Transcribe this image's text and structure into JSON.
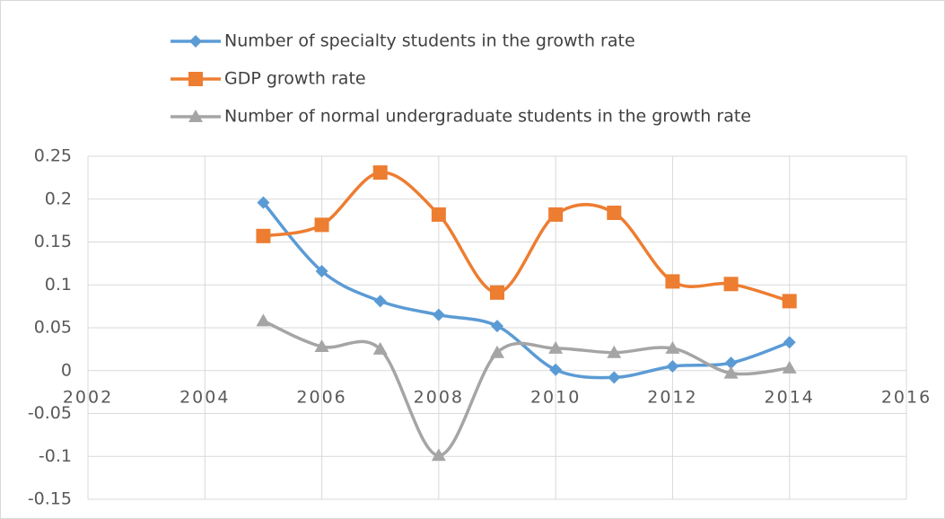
{
  "chart_data": {
    "type": "line",
    "x": [
      2005,
      2006,
      2007,
      2008,
      2009,
      2010,
      2011,
      2012,
      2013,
      2014
    ],
    "series": [
      {
        "name": "Number of specialty students in the growth rate",
        "color": "#5b9bd5",
        "marker": "diamond",
        "values": [
          0.196,
          0.116,
          0.081,
          0.065,
          0.052,
          0.001,
          -0.008,
          0.005,
          0.009,
          0.033
        ]
      },
      {
        "name": "GDP growth rate",
        "color": "#ed7d31",
        "marker": "square",
        "values": [
          0.157,
          0.17,
          0.231,
          0.182,
          0.091,
          0.182,
          0.184,
          0.104,
          0.101,
          0.081
        ]
      },
      {
        "name": "Number of normal undergraduate students in the growth rate",
        "color": "#a5a5a5",
        "marker": "triangle",
        "values": [
          0.058,
          0.028,
          0.025,
          -0.099,
          0.021,
          0.026,
          0.021,
          0.026,
          -0.003,
          0.003
        ]
      }
    ],
    "xlim": [
      2002,
      2016
    ],
    "xticks": [
      2002,
      2004,
      2006,
      2008,
      2010,
      2012,
      2014,
      2016
    ],
    "ylim": [
      -0.15,
      0.25
    ],
    "yticks": [
      -0.15,
      -0.1,
      -0.05,
      0,
      0.05,
      0.1,
      0.15,
      0.2,
      0.25
    ],
    "grid": true,
    "smooth": true,
    "legend": "top-left"
  }
}
